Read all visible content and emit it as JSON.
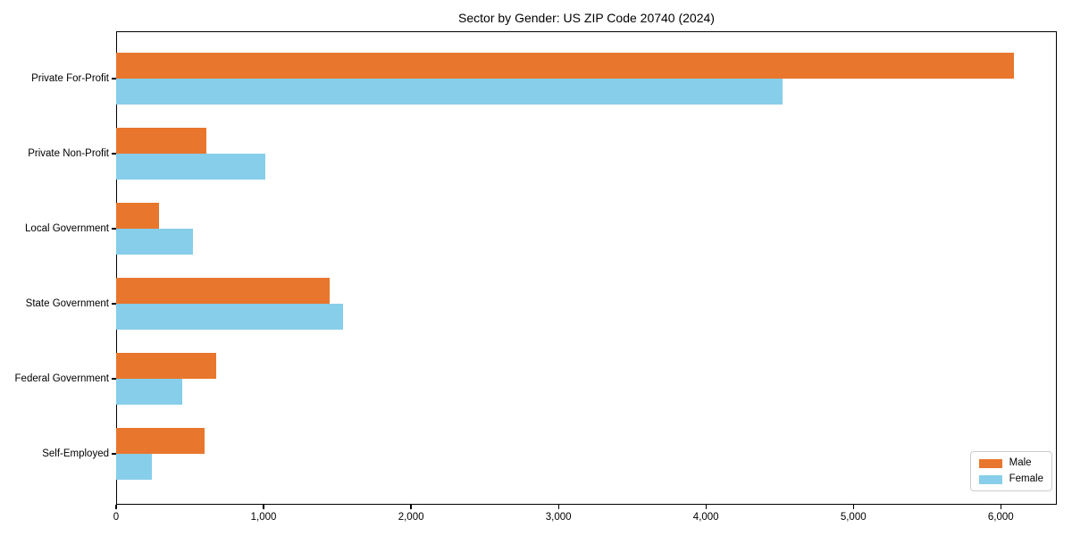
{
  "chart_data": {
    "type": "bar",
    "orientation": "horizontal",
    "title": "Sector by Gender: US ZIP Code 20740 (2024)",
    "categories": [
      "Private For-Profit",
      "Private Non-Profit",
      "Local Government",
      "State Government",
      "Federal Government",
      "Self-Employed"
    ],
    "series": [
      {
        "name": "Male",
        "color": "#E8762D",
        "values": [
          6090,
          610,
          290,
          1450,
          680,
          600
        ]
      },
      {
        "name": "Female",
        "color": "#87CEEB",
        "values": [
          4520,
          1010,
          520,
          1540,
          450,
          240
        ]
      }
    ],
    "xlim": [
      0,
      6380
    ],
    "x_ticks": [
      0,
      1000,
      2000,
      3000,
      4000,
      5000,
      6000
    ],
    "x_tick_labels": [
      "0",
      "1,000",
      "2,000",
      "3,000",
      "4,000",
      "5,000",
      "6,000"
    ],
    "xlabel": "",
    "ylabel": "",
    "grid": false,
    "legend_position": "lower right",
    "axis_color": "#000000",
    "legend_border_color": "#cccccc",
    "background_color": "#ffffff"
  }
}
